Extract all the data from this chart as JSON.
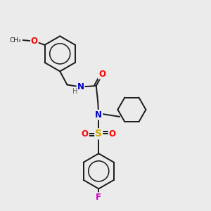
{
  "background_color": "#ebebeb",
  "bond_color": "#1a1a1a",
  "atom_colors": {
    "O": "#ff0000",
    "N": "#0000cc",
    "S": "#ccaa00",
    "F": "#cc00cc",
    "H": "#666666"
  },
  "figsize": [
    3.0,
    3.0
  ],
  "dpi": 100
}
